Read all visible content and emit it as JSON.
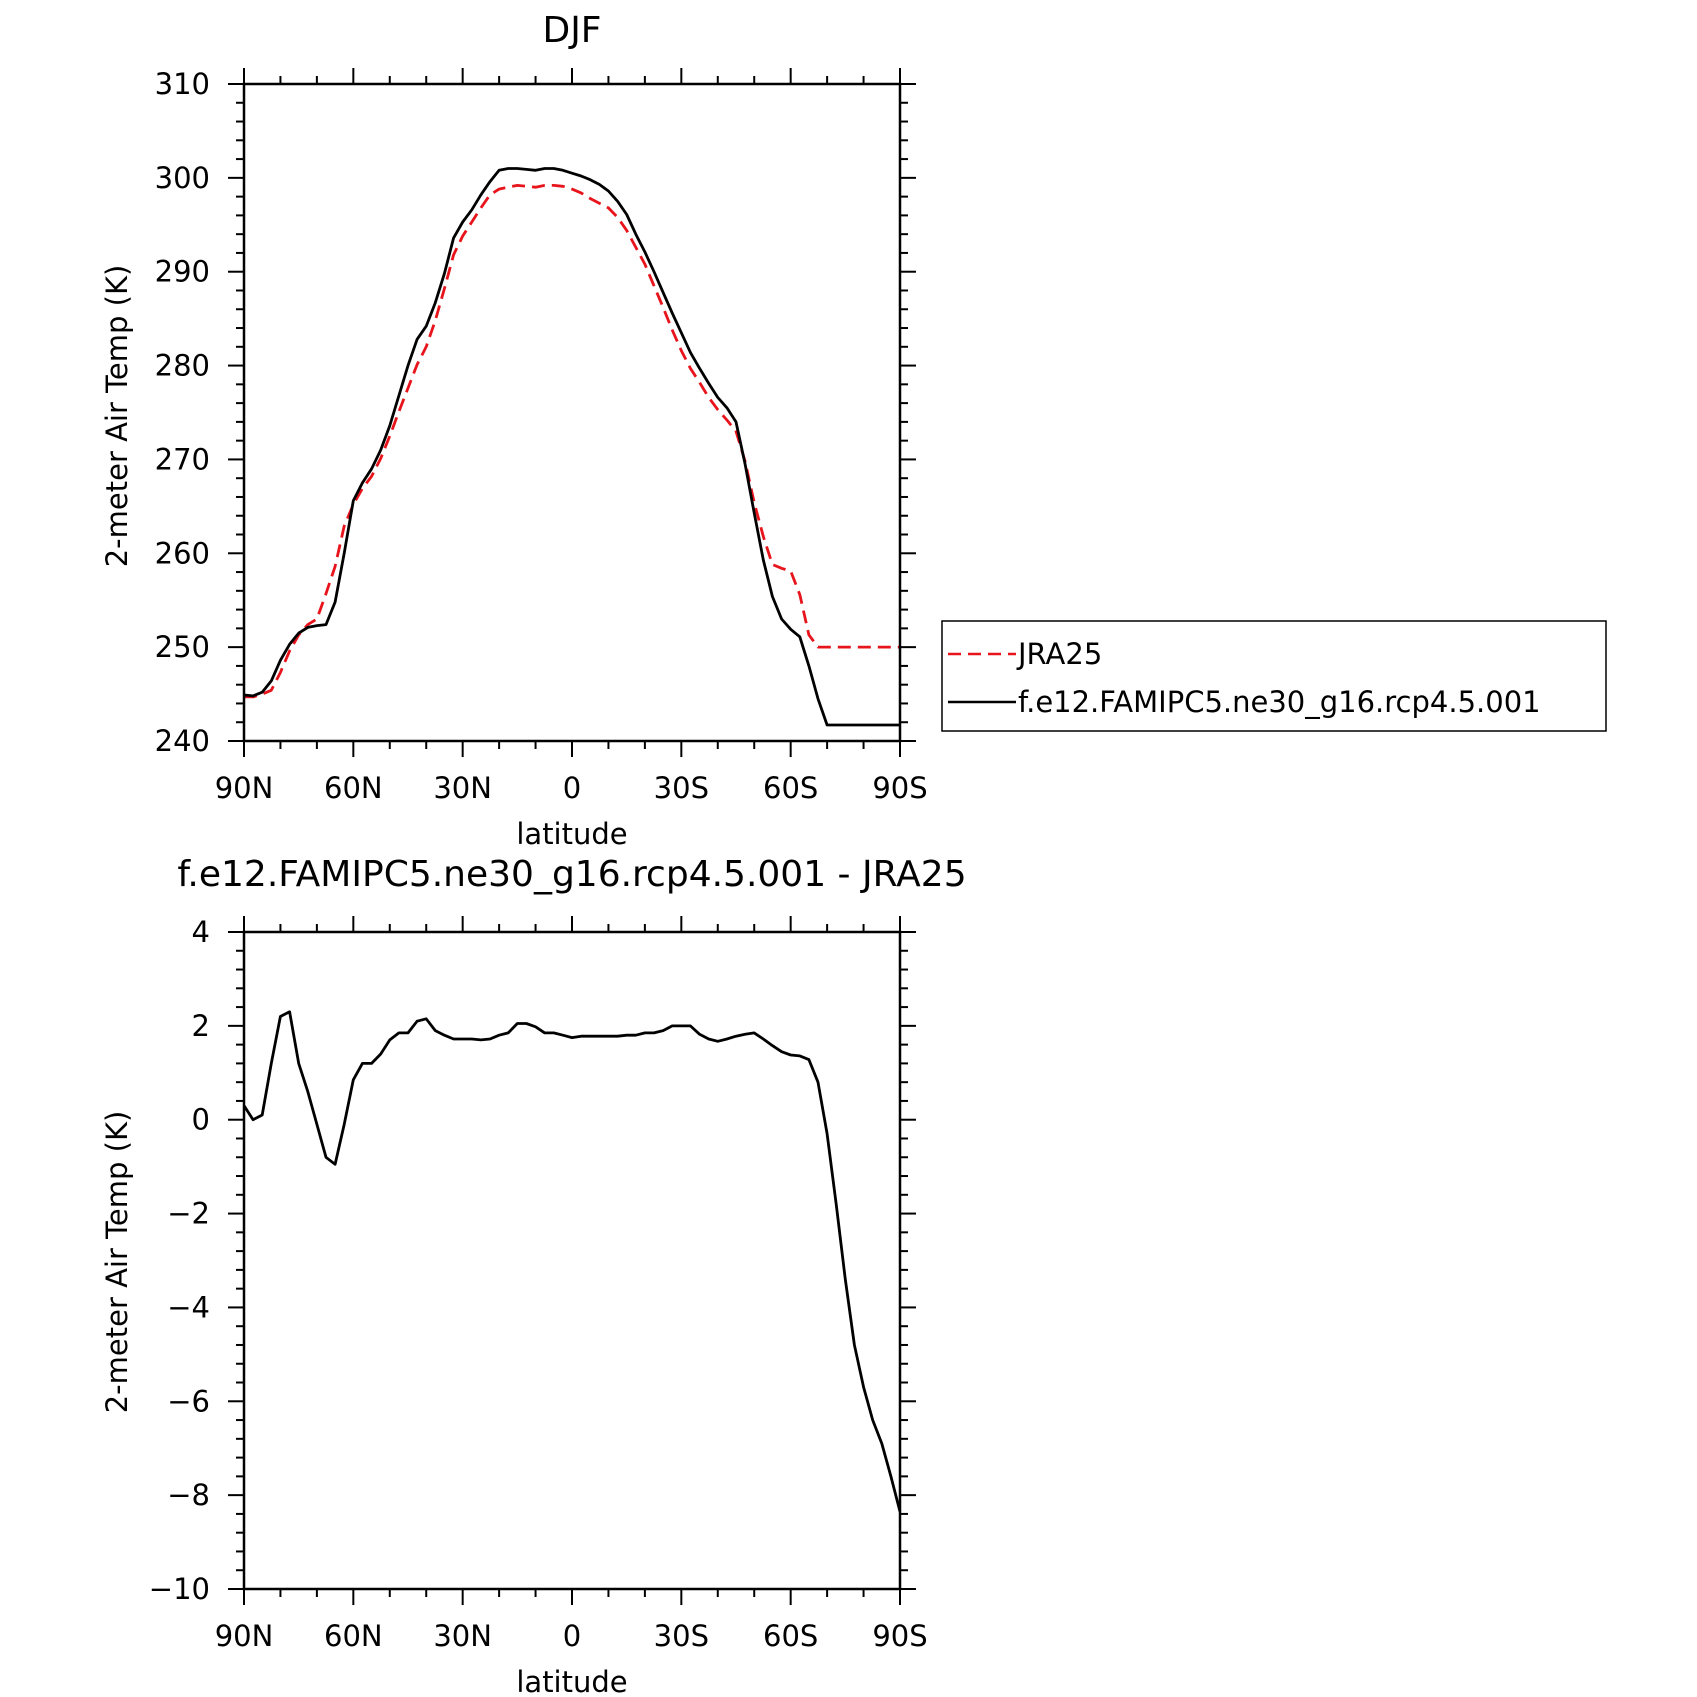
{
  "chart_data": [
    {
      "type": "line",
      "title": "DJF",
      "xlabel": "latitude",
      "ylabel": "2-meter Air Temp (K)",
      "xlim": [
        90,
        -90
      ],
      "ylim": [
        240,
        310
      ],
      "xticks": [
        {
          "value": 90,
          "label": "90N"
        },
        {
          "value": 60,
          "label": "60N"
        },
        {
          "value": 30,
          "label": "30N"
        },
        {
          "value": 0,
          "label": "0"
        },
        {
          "value": -30,
          "label": "30S"
        },
        {
          "value": -60,
          "label": "60S"
        },
        {
          "value": -90,
          "label": "90S"
        }
      ],
      "yticks": [
        {
          "value": 310,
          "label": "310"
        },
        {
          "value": 300,
          "label": "300"
        },
        {
          "value": 290,
          "label": "290"
        },
        {
          "value": 280,
          "label": "280"
        },
        {
          "value": 270,
          "label": "270"
        },
        {
          "value": 260,
          "label": "260"
        },
        {
          "value": 250,
          "label": "250"
        },
        {
          "value": 240,
          "label": "240"
        }
      ],
      "legend": {
        "placement": "right"
      },
      "series": [
        {
          "name": "JRA25",
          "color": "#e8141c",
          "dash": "dashed",
          "x": [
            90,
            87.5,
            85,
            82.5,
            80,
            77.5,
            75,
            72.5,
            70,
            67.5,
            65,
            62.5,
            60,
            57.5,
            55,
            52.5,
            50,
            47.5,
            45,
            42.5,
            40,
            37.5,
            35,
            32.5,
            30,
            27.5,
            25,
            22.5,
            20,
            17.5,
            15,
            12.5,
            10,
            7.5,
            5,
            2.5,
            0,
            -2.5,
            -5,
            -7.5,
            -10,
            -12.5,
            -15,
            -17.5,
            -20,
            -22.5,
            -25,
            -27.5,
            -30,
            -32.5,
            -35,
            -37.5,
            -40,
            -42.5,
            -45,
            -47.5,
            -50,
            -52.5,
            -55,
            -57.5,
            -60,
            -62.5,
            -65,
            -67.5,
            -70,
            -72.5,
            -75,
            -77.5,
            -80,
            -82.5,
            -85,
            -87.5,
            -90
          ],
          "y": [
            244.7,
            244.7,
            245.0,
            245.4,
            247.3,
            249.6,
            251.3,
            252.4,
            253.0,
            255.7,
            258.6,
            262.9,
            265.2,
            266.9,
            268.2,
            270.1,
            272.5,
            275.1,
            277.6,
            280.1,
            282.0,
            284.8,
            288.2,
            291.8,
            293.8,
            295.3,
            296.8,
            298.2,
            298.8,
            299.0,
            299.2,
            299.1,
            299.0,
            299.2,
            299.2,
            299.1,
            298.8,
            298.4,
            297.8,
            297.3,
            296.8,
            295.8,
            294.4,
            292.6,
            290.8,
            288.5,
            286.2,
            283.8,
            281.6,
            279.7,
            278.2,
            276.6,
            275.3,
            274.2,
            273.0,
            269.8,
            265.4,
            261.8,
            258.8,
            258.4,
            258.1,
            255.6,
            251.3,
            250.0,
            250.0,
            250.0,
            250.0,
            250.0,
            250.0,
            250.0,
            250.0,
            250.0,
            250.0
          ]
        },
        {
          "name": "f.e12.FAMIPC5.ne30_g16.rcp4.5.001",
          "color": "#000000",
          "dash": "solid",
          "x": [
            90,
            87.5,
            85,
            82.5,
            80,
            77.5,
            75,
            72.5,
            70,
            67.5,
            65,
            62.5,
            60,
            57.5,
            55,
            52.5,
            50,
            47.5,
            45,
            42.5,
            40,
            37.5,
            35,
            32.5,
            30,
            27.5,
            25,
            22.5,
            20,
            17.5,
            15,
            12.5,
            10,
            7.5,
            5,
            2.5,
            0,
            -2.5,
            -5,
            -7.5,
            -10,
            -12.5,
            -15,
            -17.5,
            -20,
            -22.5,
            -25,
            -27.5,
            -30,
            -32.5,
            -35,
            -37.5,
            -40,
            -42.5,
            -45,
            -47.5,
            -50,
            -52.5,
            -55,
            -57.5,
            -60,
            -62.5,
            -65,
            -67.5,
            -70,
            -72.5,
            -75,
            -77.5,
            -80,
            -82.5,
            -85,
            -87.5,
            -90
          ],
          "y": [
            244.9,
            244.8,
            245.2,
            246.4,
            248.6,
            250.3,
            251.5,
            252.1,
            252.3,
            252.4,
            254.8,
            260.0,
            265.6,
            267.5,
            269.0,
            271.0,
            273.6,
            276.8,
            280.0,
            282.8,
            284.2,
            286.7,
            289.8,
            293.6,
            295.3,
            296.6,
            298.2,
            299.6,
            300.8,
            301.0,
            301.0,
            300.9,
            300.8,
            301.0,
            301.0,
            300.8,
            300.5,
            300.2,
            299.8,
            299.3,
            298.6,
            297.5,
            296.1,
            294.0,
            292.1,
            290.0,
            287.8,
            285.6,
            283.5,
            281.4,
            279.7,
            278.1,
            276.6,
            275.5,
            274.0,
            269.5,
            264.3,
            259.3,
            255.4,
            253.0,
            251.9,
            251.1,
            248.0,
            244.5,
            241.7,
            241.7,
            241.7,
            241.7,
            241.7,
            241.7,
            241.7,
            241.7,
            241.7
          ]
        }
      ]
    },
    {
      "type": "line",
      "title": "f.e12.FAMIPC5.ne30_g16.rcp4.5.001 - JRA25",
      "xlabel": "latitude",
      "ylabel": "2-meter Air Temp (K)",
      "xlim": [
        90,
        -90
      ],
      "ylim": [
        -10,
        4
      ],
      "xticks": [
        {
          "value": 90,
          "label": "90N"
        },
        {
          "value": 60,
          "label": "60N"
        },
        {
          "value": 30,
          "label": "30N"
        },
        {
          "value": 0,
          "label": "0"
        },
        {
          "value": -30,
          "label": "30S"
        },
        {
          "value": -60,
          "label": "60S"
        },
        {
          "value": -90,
          "label": "90S"
        }
      ],
      "yticks": [
        {
          "value": 4,
          "label": "4"
        },
        {
          "value": 2,
          "label": "2"
        },
        {
          "value": 0,
          "label": "0"
        },
        {
          "value": -2,
          "label": "−2"
        },
        {
          "value": -4,
          "label": "−4"
        },
        {
          "value": -6,
          "label": "−6"
        },
        {
          "value": -8,
          "label": "−8"
        },
        {
          "value": -10,
          "label": "−10"
        }
      ],
      "series": [
        {
          "color": "#000000",
          "dash": "solid",
          "x": [
            90,
            87.5,
            85,
            82.5,
            80,
            77.5,
            75,
            72.5,
            70,
            67.5,
            65,
            62.5,
            60,
            57.5,
            55,
            52.5,
            50,
            47.5,
            45,
            42.5,
            40,
            37.5,
            35,
            32.5,
            30,
            27.5,
            25,
            22.5,
            20,
            17.5,
            15,
            12.5,
            10,
            7.5,
            5,
            2.5,
            0,
            -2.5,
            -5,
            -7.5,
            -10,
            -12.5,
            -15,
            -17.5,
            -20,
            -22.5,
            -25,
            -27.5,
            -30,
            -32.5,
            -35,
            -37.5,
            -40,
            -42.5,
            -45,
            -47.5,
            -50,
            -52.5,
            -55,
            -57.5,
            -60,
            -62.5,
            -65,
            -67.5,
            -70,
            -72.5,
            -75,
            -77.5,
            -80,
            -82.5,
            -85,
            -87.5,
            -90
          ],
          "y": [
            0.3,
            0.0,
            0.1,
            1.2,
            2.2,
            2.3,
            1.2,
            0.6,
            -0.1,
            -0.8,
            -0.95,
            -0.1,
            0.85,
            1.2,
            1.2,
            1.4,
            1.7,
            1.85,
            1.85,
            2.1,
            2.15,
            1.9,
            1.8,
            1.72,
            1.72,
            1.72,
            1.7,
            1.72,
            1.8,
            1.85,
            2.05,
            2.05,
            1.98,
            1.85,
            1.85,
            1.8,
            1.75,
            1.78,
            1.78,
            1.78,
            1.78,
            1.78,
            1.8,
            1.8,
            1.85,
            1.85,
            1.9,
            2.0,
            2.0,
            2.0,
            1.82,
            1.72,
            1.67,
            1.72,
            1.78,
            1.82,
            1.85,
            1.72,
            1.58,
            1.45,
            1.38,
            1.36,
            1.28,
            0.8,
            -0.3,
            -1.8,
            -3.4,
            -4.8,
            -5.7,
            -6.4,
            -6.9,
            -7.6,
            -8.35
          ]
        }
      ]
    }
  ]
}
